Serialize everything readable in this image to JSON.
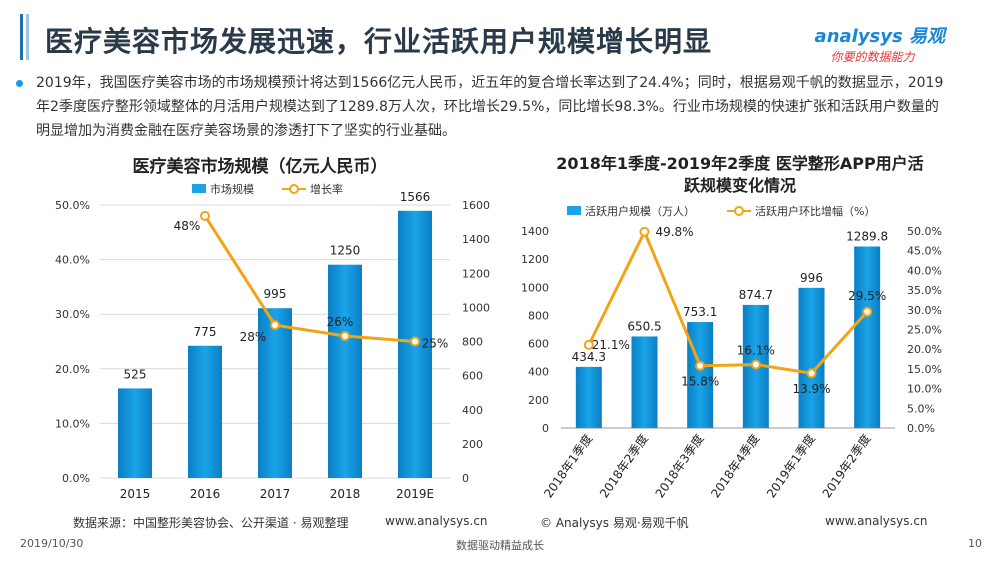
{
  "page": {
    "title": "医疗美容市场发展迅速，行业活跃用户规模增长明显",
    "logo_main": "analysys 易观",
    "logo_sub": "你要的数据能力",
    "bullet_text": "2019年，我国医疗美容市场的市场规模预计将达到1566亿元人民币，近五年的复合增长率达到了24.4%；同时，根据易观千帆的数据显示，2019年2季度医疗整形领域整体的月活用户规模达到了1289.8万人次，环比增长29.5%，同比增长98.3%。行业市场规模的快速扩张和活跃用户数量的明显增加为消费金融在医疗美容场景的渗透打下了坚实的行业基础。",
    "footer_date": "2019/10/30",
    "footer_center": "数据驱动精益成长",
    "footer_page": "10"
  },
  "colors": {
    "bar": "#1aa3e8",
    "bar_dark": "#0b7fc4",
    "line": "#f2a417",
    "title_accent": "#1e6fb5"
  },
  "chart_data": [
    {
      "type": "bar",
      "title": "医疗美容市场规模（亿元人民币）",
      "legend": [
        "市场规模",
        "增长率"
      ],
      "legend_position": "top",
      "categories": [
        "2015",
        "2016",
        "2017",
        "2018",
        "2019E"
      ],
      "series": [
        {
          "name": "市场规模",
          "type": "bar",
          "axis": "right",
          "values": [
            525,
            775,
            995,
            1250,
            1566
          ],
          "labels": [
            "525",
            "775",
            "995",
            "1250",
            "1566"
          ]
        },
        {
          "name": "增长率",
          "type": "line",
          "axis": "left",
          "values": [
            null,
            48,
            28,
            26,
            25
          ],
          "labels": [
            "",
            "48%",
            "28%",
            "26%",
            "25%"
          ]
        }
      ],
      "y_left": {
        "ticks": [
          "0.0%",
          "10.0%",
          "20.0%",
          "30.0%",
          "40.0%",
          "50.0%"
        ],
        "range": [
          0,
          50
        ]
      },
      "y_right": {
        "ticks": [
          "0",
          "200",
          "400",
          "600",
          "800",
          "1000",
          "1200",
          "1400",
          "1600"
        ],
        "range": [
          0,
          1600
        ]
      },
      "grid": true,
      "source": "数据来源：中国整形美容协会、公开渠道 · 易观整理",
      "url": "www.analysys.cn"
    },
    {
      "type": "bar",
      "title_line1": "2018年1季度-2019年2季度 医学整形APP用户活",
      "title_line2": "跃规模变化情况",
      "legend": [
        "活跃用户规模（万人）",
        "活跃用户环比增幅（%）"
      ],
      "legend_position": "top",
      "categories": [
        "2018年1季度",
        "2018年2季度",
        "2018年3季度",
        "2018年4季度",
        "2019年1季度",
        "2019年2季度"
      ],
      "series": [
        {
          "name": "活跃用户规模（万人）",
          "type": "bar",
          "axis": "left",
          "values": [
            434.3,
            650.5,
            753.1,
            874.7,
            996,
            1289.8
          ],
          "labels": [
            "434.3",
            "650.5",
            "753.1",
            "874.7",
            "996",
            "1289.8"
          ]
        },
        {
          "name": "活跃用户环比增幅（%）",
          "type": "line",
          "axis": "right",
          "values": [
            21.1,
            49.8,
            15.8,
            16.1,
            13.9,
            29.5
          ],
          "labels": [
            "21.1%",
            "49.8%",
            "15.8%",
            "16.1%",
            "13.9%",
            "29.5%"
          ]
        }
      ],
      "y_left": {
        "ticks": [
          "0",
          "200",
          "400",
          "600",
          "800",
          "1000",
          "1200",
          "1400"
        ],
        "range": [
          0,
          1400
        ]
      },
      "y_right": {
        "ticks": [
          "0.0%",
          "5.0%",
          "10.0%",
          "15.0%",
          "20.0%",
          "25.0%",
          "30.0%",
          "35.0%",
          "40.0%",
          "45.0%",
          "50.0%"
        ],
        "range": [
          0,
          50
        ]
      },
      "grid": false,
      "source": "© Analysys 易观·易观千帆",
      "url": "www.analysys.cn"
    }
  ]
}
